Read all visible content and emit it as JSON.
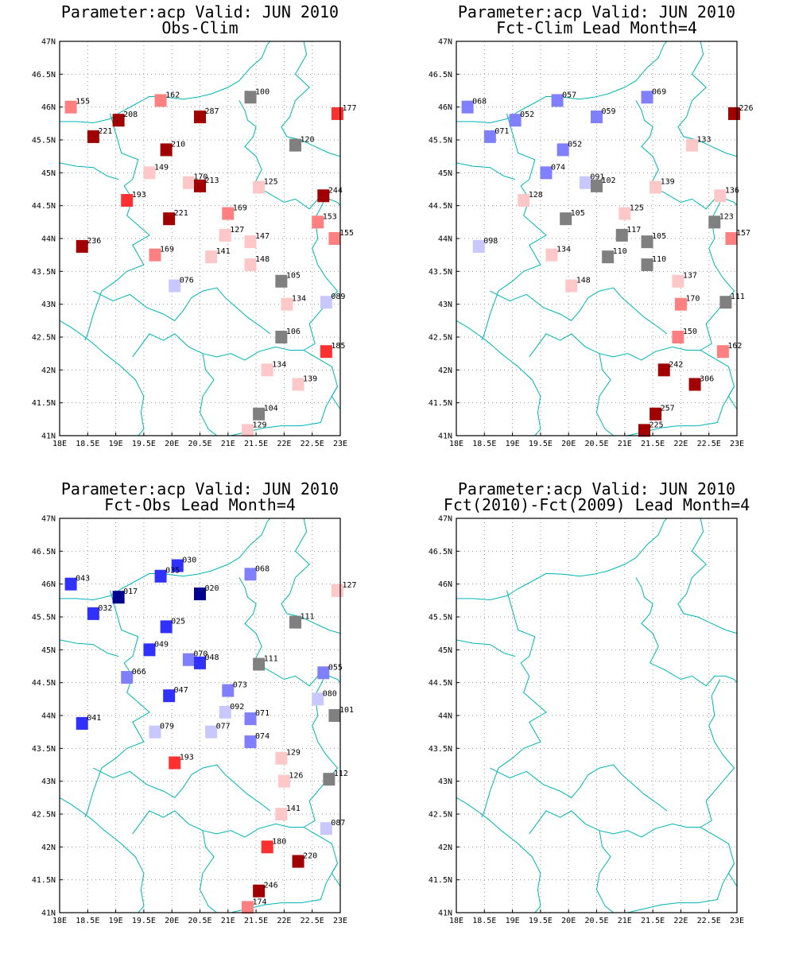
{
  "figure": {
    "panels": [
      {
        "title_line1": "Parameter:acp Valid: JUN 2010",
        "title_line2": "Obs-Clim",
        "stations": [
          {
            "lon": 18.2,
            "lat": 46.0,
            "v": "155",
            "c": "#ff8080"
          },
          {
            "lon": 19.8,
            "lat": 46.1,
            "v": "162",
            "c": "#ff8080"
          },
          {
            "lon": 21.4,
            "lat": 46.15,
            "v": "100",
            "c": "#808080"
          },
          {
            "lon": 22.95,
            "lat": 45.9,
            "v": "177",
            "c": "#ff3030"
          },
          {
            "lon": 19.05,
            "lat": 45.8,
            "v": "208",
            "c": "#a00000"
          },
          {
            "lon": 20.5,
            "lat": 45.85,
            "v": "287",
            "c": "#a00000"
          },
          {
            "lon": 18.6,
            "lat": 45.55,
            "v": "221",
            "c": "#a00000"
          },
          {
            "lon": 22.2,
            "lat": 45.42,
            "v": "120",
            "c": "#808080"
          },
          {
            "lon": 19.9,
            "lat": 45.35,
            "v": "210",
            "c": "#a00000"
          },
          {
            "lon": 19.6,
            "lat": 45.0,
            "v": "149",
            "c": "#ffc8c8"
          },
          {
            "lon": 20.3,
            "lat": 44.85,
            "v": "170",
            "c": "#ffc8c8"
          },
          {
            "lon": 20.5,
            "lat": 44.8,
            "v": "213",
            "c": "#a00000"
          },
          {
            "lon": 21.55,
            "lat": 44.78,
            "v": "125",
            "c": "#ffc8c8"
          },
          {
            "lon": 22.7,
            "lat": 44.65,
            "v": "244",
            "c": "#a00000"
          },
          {
            "lon": 19.2,
            "lat": 44.58,
            "v": "193",
            "c": "#ff3030"
          },
          {
            "lon": 19.95,
            "lat": 44.3,
            "v": "221",
            "c": "#a00000"
          },
          {
            "lon": 21.0,
            "lat": 44.38,
            "v": "169",
            "c": "#ff8080"
          },
          {
            "lon": 22.6,
            "lat": 44.25,
            "v": "153",
            "c": "#ff8080"
          },
          {
            "lon": 22.9,
            "lat": 44.0,
            "v": "155",
            "c": "#ff8080"
          },
          {
            "lon": 20.95,
            "lat": 44.05,
            "v": "127",
            "c": "#ffc8c8"
          },
          {
            "lon": 21.4,
            "lat": 43.95,
            "v": "147",
            "c": "#ffc8c8"
          },
          {
            "lon": 18.4,
            "lat": 43.88,
            "v": "236",
            "c": "#a00000"
          },
          {
            "lon": 19.7,
            "lat": 43.75,
            "v": "169",
            "c": "#ff8080"
          },
          {
            "lon": 20.7,
            "lat": 43.72,
            "v": "141",
            "c": "#ffc8c8"
          },
          {
            "lon": 21.4,
            "lat": 43.6,
            "v": "148",
            "c": "#ffc8c8"
          },
          {
            "lon": 21.95,
            "lat": 43.35,
            "v": "105",
            "c": "#808080"
          },
          {
            "lon": 20.05,
            "lat": 43.28,
            "v": "076",
            "c": "#c8c8ff"
          },
          {
            "lon": 22.05,
            "lat": 43.0,
            "v": "134",
            "c": "#ffc8c8"
          },
          {
            "lon": 22.75,
            "lat": 43.03,
            "v": "089",
            "c": "#c8c8ff"
          },
          {
            "lon": 21.95,
            "lat": 42.5,
            "v": "106",
            "c": "#808080"
          },
          {
            "lon": 22.75,
            "lat": 42.28,
            "v": "185",
            "c": "#ff3030"
          },
          {
            "lon": 21.7,
            "lat": 42.0,
            "v": "134",
            "c": "#ffc8c8"
          },
          {
            "lon": 22.25,
            "lat": 41.78,
            "v": "139",
            "c": "#ffc8c8"
          },
          {
            "lon": 21.55,
            "lat": 41.33,
            "v": "104",
            "c": "#808080"
          },
          {
            "lon": 21.35,
            "lat": 41.08,
            "v": "129",
            "c": "#ffc8c8"
          }
        ]
      },
      {
        "title_line1": "Parameter:acp Valid: JUN 2010",
        "title_line2": "Fct-Clim Lead Month=4",
        "stations": [
          {
            "lon": 18.2,
            "lat": 46.0,
            "v": "068",
            "c": "#8080ff"
          },
          {
            "lon": 19.8,
            "lat": 46.1,
            "v": "057",
            "c": "#8080ff"
          },
          {
            "lon": 21.4,
            "lat": 46.15,
            "v": "069",
            "c": "#8080ff"
          },
          {
            "lon": 22.95,
            "lat": 45.9,
            "v": "226",
            "c": "#a00000"
          },
          {
            "lon": 19.05,
            "lat": 45.8,
            "v": "052",
            "c": "#8080ff"
          },
          {
            "lon": 20.5,
            "lat": 45.85,
            "v": "059",
            "c": "#8080ff"
          },
          {
            "lon": 18.6,
            "lat": 45.55,
            "v": "071",
            "c": "#8080ff"
          },
          {
            "lon": 22.2,
            "lat": 45.42,
            "v": "133",
            "c": "#ffc8c8"
          },
          {
            "lon": 19.9,
            "lat": 45.35,
            "v": "052",
            "c": "#8080ff"
          },
          {
            "lon": 19.6,
            "lat": 45.0,
            "v": "074",
            "c": "#8080ff"
          },
          {
            "lon": 20.3,
            "lat": 44.85,
            "v": "091",
            "c": "#c8c8ff"
          },
          {
            "lon": 20.5,
            "lat": 44.8,
            "v": "102",
            "c": "#808080"
          },
          {
            "lon": 21.55,
            "lat": 44.78,
            "v": "139",
            "c": "#ffc8c8"
          },
          {
            "lon": 22.7,
            "lat": 44.65,
            "v": "136",
            "c": "#ffc8c8"
          },
          {
            "lon": 19.2,
            "lat": 44.58,
            "v": "128",
            "c": "#ffc8c8"
          },
          {
            "lon": 19.95,
            "lat": 44.3,
            "v": "105",
            "c": "#808080"
          },
          {
            "lon": 21.0,
            "lat": 44.38,
            "v": "125",
            "c": "#ffc8c8"
          },
          {
            "lon": 22.6,
            "lat": 44.25,
            "v": "123",
            "c": "#808080"
          },
          {
            "lon": 22.9,
            "lat": 44.0,
            "v": "157",
            "c": "#ff8080"
          },
          {
            "lon": 20.95,
            "lat": 44.05,
            "v": "117",
            "c": "#808080"
          },
          {
            "lon": 21.4,
            "lat": 43.95,
            "v": "105",
            "c": "#808080"
          },
          {
            "lon": 18.4,
            "lat": 43.88,
            "v": "098",
            "c": "#c8c8ff"
          },
          {
            "lon": 19.7,
            "lat": 43.75,
            "v": "134",
            "c": "#ffc8c8"
          },
          {
            "lon": 20.7,
            "lat": 43.72,
            "v": "110",
            "c": "#808080"
          },
          {
            "lon": 21.4,
            "lat": 43.6,
            "v": "110",
            "c": "#808080"
          },
          {
            "lon": 21.95,
            "lat": 43.35,
            "v": "137",
            "c": "#ffc8c8"
          },
          {
            "lon": 20.05,
            "lat": 43.28,
            "v": "148",
            "c": "#ffc8c8"
          },
          {
            "lon": 22.0,
            "lat": 43.0,
            "v": "170",
            "c": "#ff8080"
          },
          {
            "lon": 22.8,
            "lat": 43.03,
            "v": "111",
            "c": "#808080"
          },
          {
            "lon": 21.95,
            "lat": 42.5,
            "v": "150",
            "c": "#ff8080"
          },
          {
            "lon": 22.75,
            "lat": 42.28,
            "v": "162",
            "c": "#ff8080"
          },
          {
            "lon": 21.7,
            "lat": 42.0,
            "v": "242",
            "c": "#a00000"
          },
          {
            "lon": 22.25,
            "lat": 41.78,
            "v": "306",
            "c": "#a00000"
          },
          {
            "lon": 21.55,
            "lat": 41.33,
            "v": "257",
            "c": "#a00000"
          },
          {
            "lon": 21.35,
            "lat": 41.08,
            "v": "225",
            "c": "#a00000"
          }
        ]
      },
      {
        "title_line1": "Parameter:acp Valid: JUN 2010",
        "title_line2": "Fct-Obs Lead Month=4",
        "stations": [
          {
            "lon": 18.2,
            "lat": 46.0,
            "v": "043",
            "c": "#3030ff"
          },
          {
            "lon": 20.1,
            "lat": 46.28,
            "v": "030",
            "c": "#3030ff"
          },
          {
            "lon": 19.8,
            "lat": 46.12,
            "v": "035",
            "c": "#3030ff"
          },
          {
            "lon": 21.4,
            "lat": 46.15,
            "v": "068",
            "c": "#8080ff"
          },
          {
            "lon": 22.95,
            "lat": 45.9,
            "v": "127",
            "c": "#ffc8c8"
          },
          {
            "lon": 19.05,
            "lat": 45.8,
            "v": "017",
            "c": "#000090"
          },
          {
            "lon": 20.5,
            "lat": 45.85,
            "v": "020",
            "c": "#000090"
          },
          {
            "lon": 18.6,
            "lat": 45.55,
            "v": "032",
            "c": "#3030ff"
          },
          {
            "lon": 22.2,
            "lat": 45.42,
            "v": "111",
            "c": "#808080"
          },
          {
            "lon": 19.9,
            "lat": 45.35,
            "v": "025",
            "c": "#3030ff"
          },
          {
            "lon": 19.6,
            "lat": 45.0,
            "v": "049",
            "c": "#3030ff"
          },
          {
            "lon": 20.3,
            "lat": 44.85,
            "v": "070",
            "c": "#8080ff"
          },
          {
            "lon": 20.5,
            "lat": 44.8,
            "v": "048",
            "c": "#3030ff"
          },
          {
            "lon": 21.55,
            "lat": 44.78,
            "v": "111",
            "c": "#808080"
          },
          {
            "lon": 22.7,
            "lat": 44.65,
            "v": "055",
            "c": "#8080ff"
          },
          {
            "lon": 19.2,
            "lat": 44.58,
            "v": "066",
            "c": "#8080ff"
          },
          {
            "lon": 19.95,
            "lat": 44.3,
            "v": "047",
            "c": "#3030ff"
          },
          {
            "lon": 21.0,
            "lat": 44.38,
            "v": "073",
            "c": "#8080ff"
          },
          {
            "lon": 22.6,
            "lat": 44.25,
            "v": "080",
            "c": "#c8c8ff"
          },
          {
            "lon": 22.9,
            "lat": 44.0,
            "v": "101",
            "c": "#808080"
          },
          {
            "lon": 20.95,
            "lat": 44.05,
            "v": "092",
            "c": "#c8c8ff"
          },
          {
            "lon": 21.4,
            "lat": 43.95,
            "v": "071",
            "c": "#8080ff"
          },
          {
            "lon": 18.4,
            "lat": 43.88,
            "v": "041",
            "c": "#3030ff"
          },
          {
            "lon": 19.7,
            "lat": 43.75,
            "v": "079",
            "c": "#c8c8ff"
          },
          {
            "lon": 20.7,
            "lat": 43.75,
            "v": "077",
            "c": "#c8c8ff"
          },
          {
            "lon": 21.4,
            "lat": 43.6,
            "v": "074",
            "c": "#8080ff"
          },
          {
            "lon": 21.95,
            "lat": 43.35,
            "v": "129",
            "c": "#ffc8c8"
          },
          {
            "lon": 20.05,
            "lat": 43.28,
            "v": "193",
            "c": "#ff3030"
          },
          {
            "lon": 22.0,
            "lat": 43.0,
            "v": "126",
            "c": "#ffc8c8"
          },
          {
            "lon": 22.8,
            "lat": 43.03,
            "v": "112",
            "c": "#808080"
          },
          {
            "lon": 21.95,
            "lat": 42.5,
            "v": "141",
            "c": "#ffc8c8"
          },
          {
            "lon": 22.75,
            "lat": 42.28,
            "v": "087",
            "c": "#c8c8ff"
          },
          {
            "lon": 21.7,
            "lat": 42.0,
            "v": "180",
            "c": "#ff3030"
          },
          {
            "lon": 22.25,
            "lat": 41.78,
            "v": "220",
            "c": "#a00000"
          },
          {
            "lon": 21.55,
            "lat": 41.33,
            "v": "246",
            "c": "#a00000"
          },
          {
            "lon": 21.35,
            "lat": 41.08,
            "v": "174",
            "c": "#ff8080"
          }
        ]
      },
      {
        "title_line1": "Parameter:acp Valid: JUN 2010",
        "title_line2": "Fct(2010)-Fct(2009) Lead Month=4",
        "stations": []
      }
    ],
    "lon_ticks": [
      "18E",
      "18.5E",
      "19E",
      "19.5E",
      "20E",
      "20.5E",
      "21E",
      "21.5E",
      "22E",
      "22.5E",
      "23E"
    ],
    "lat_ticks": [
      "41N",
      "41.5N",
      "42N",
      "42.5N",
      "43N",
      "43.5N",
      "44N",
      "44.5N",
      "45N",
      "45.5N",
      "46N",
      "46.5N",
      "47N"
    ],
    "lon_range": [
      18,
      23
    ],
    "lat_range": [
      41,
      47
    ],
    "colors": {
      "border": "#00b4b4",
      "grid": "#9a9a9a"
    }
  }
}
